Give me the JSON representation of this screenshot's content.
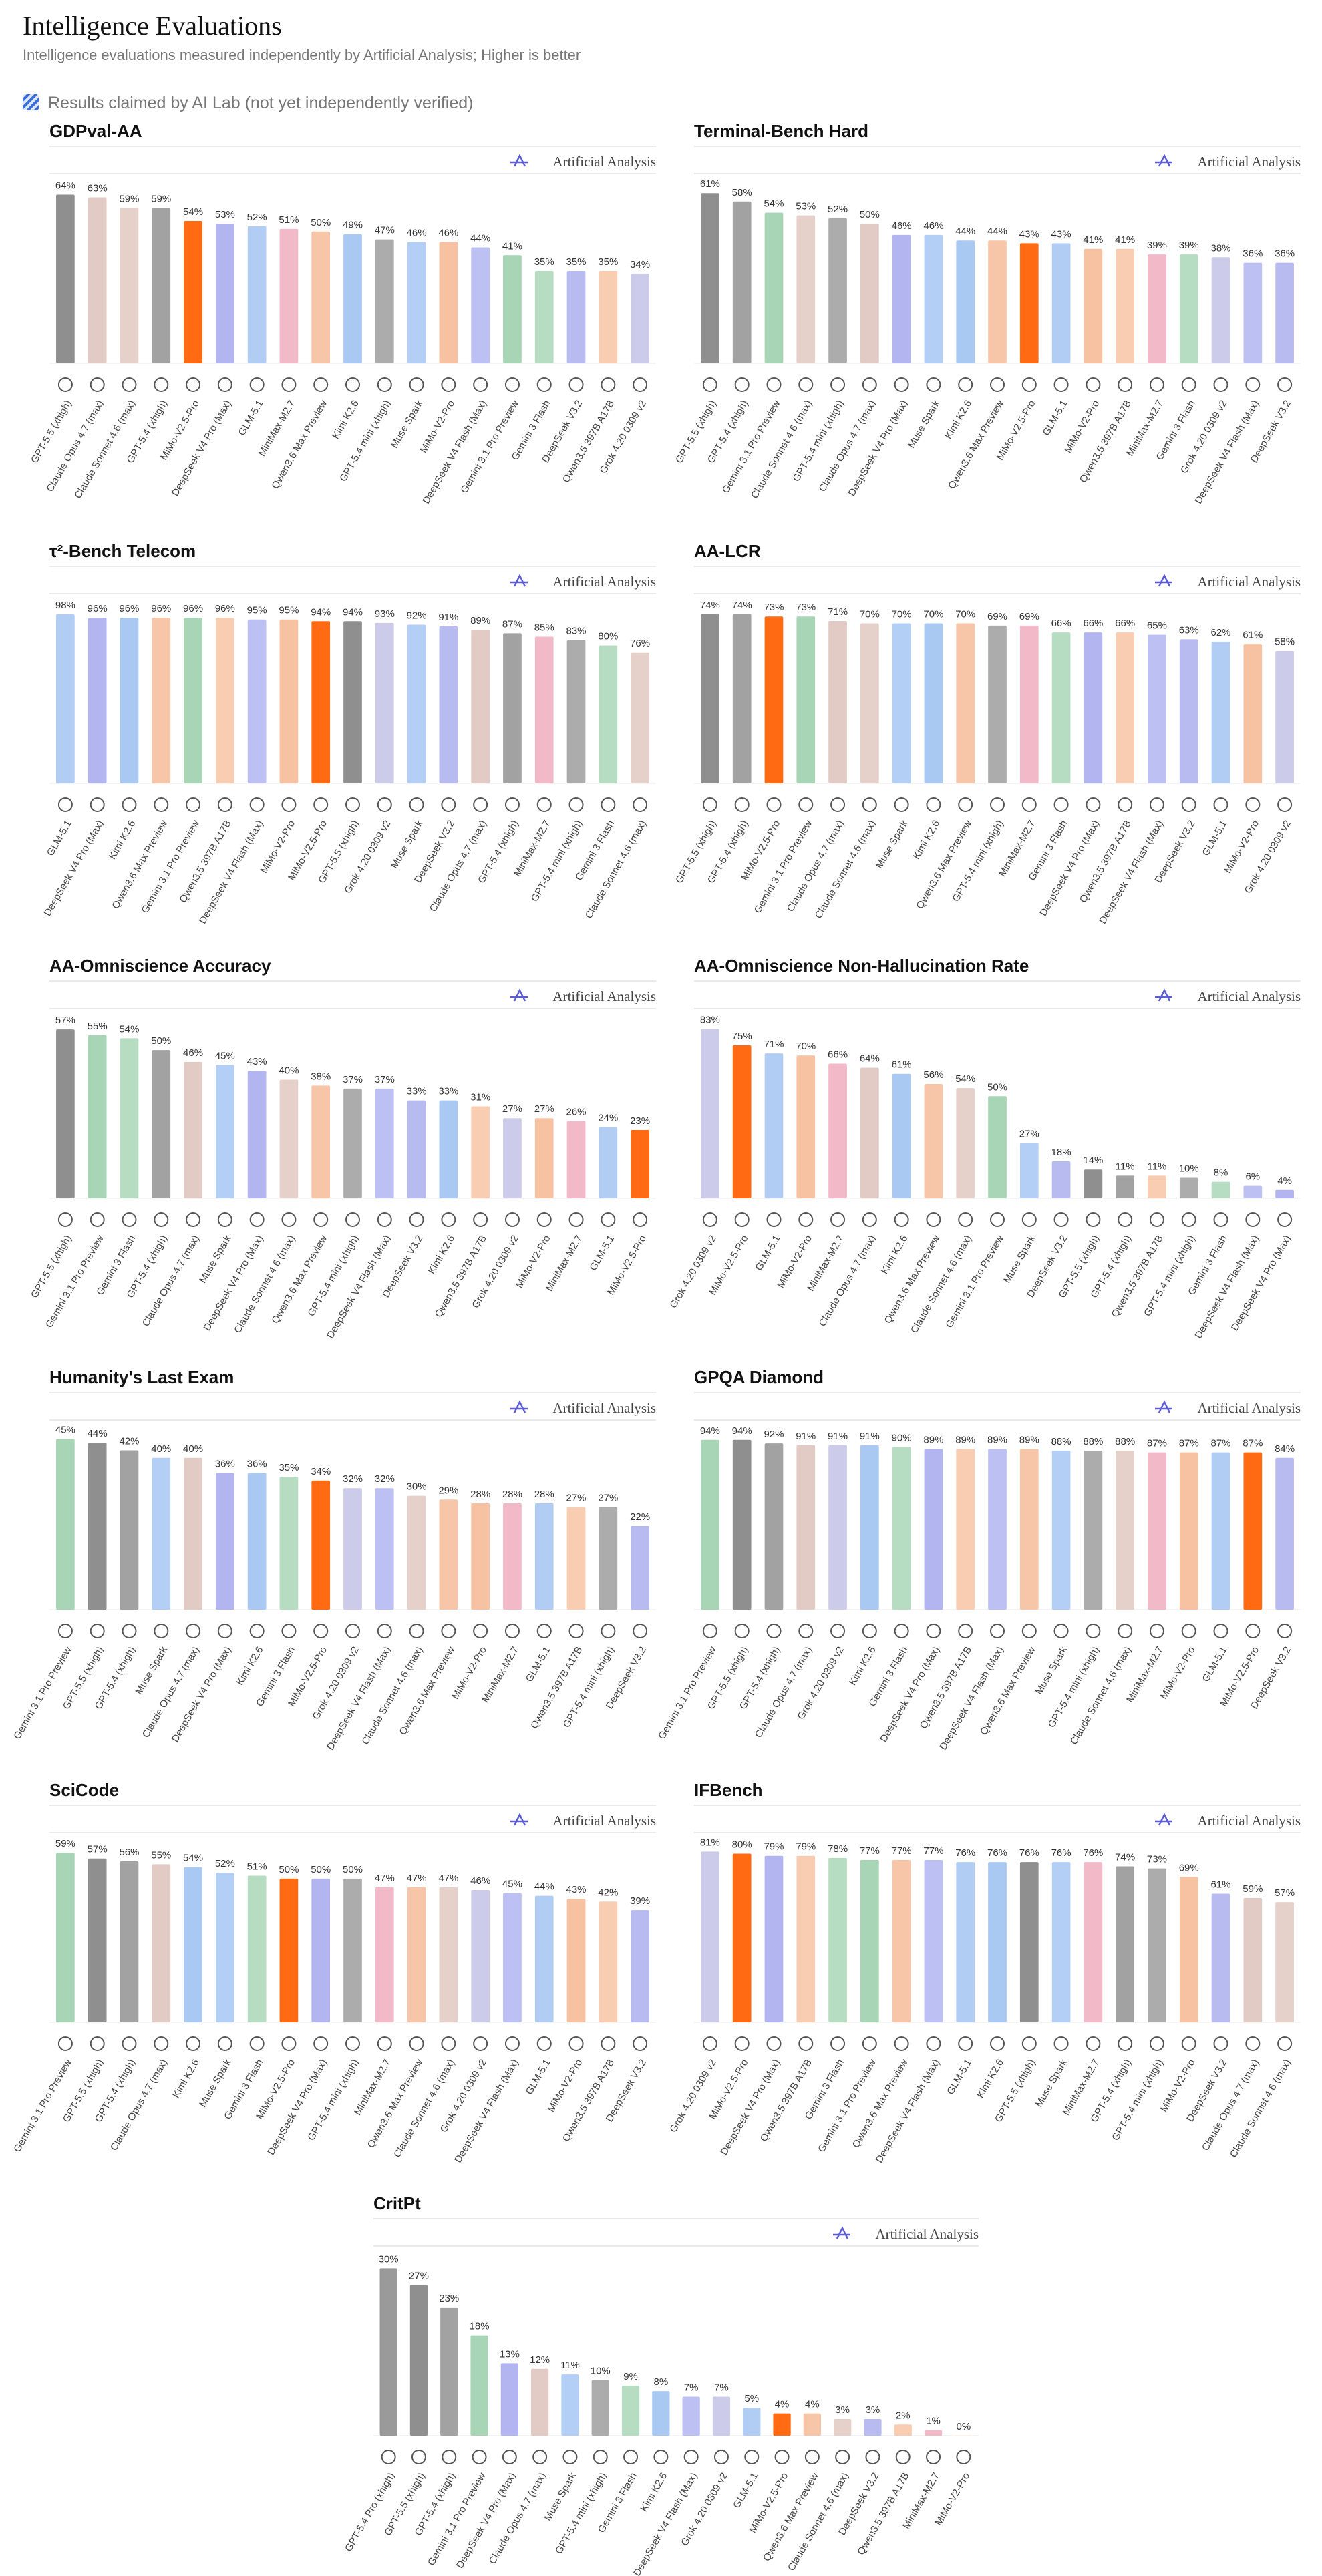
{
  "header": {
    "title": "Intelligence Evaluations",
    "subtitle": "Intelligence evaluations measured independently by Artificial Analysis; Higher is better",
    "legend": "Results claimed by AI Lab (not yet independently verified)"
  },
  "watermark": "Artificial Analysis",
  "bar_colors": {
    "GPT-5.5 (xhigh)": "#8f8f8f",
    "GPT-5.4 (xhigh)": "#a2a2a2",
    "GPT-5.4 mini (xhigh)": "#acacac",
    "GPT-5.4 Pro (xhigh)": "#9a9a9a",
    "Claude Opus 4.7 (max)": "#e2cbc4",
    "Claude Sonnet 4.6 (max)": "#e6d1ca",
    "Gemini 3.1 Pro Preview": "#a8d5b5",
    "Gemini 3 Flash": "#b6dcc1",
    "DeepSeek V4 Pro (Max)": "#b2b5ef",
    "DeepSeek V4 Flash (Max)": "#bcc0f2",
    "DeepSeek V3.2": "#b8bbf0",
    "Kimi K2.6": "#a9c9f3",
    "Muse Spark": "#b4cff5",
    "GLM-5.1": "#b2cdf3",
    "Grok 4.20 0309 v2": "#ccccea",
    "Qwen3.6 Max Preview": "#f7c6a8",
    "Qwen3.5 397B A17B": "#f8cdb2",
    "MiniMax-M2.7": "#f2b9c8",
    "MiMo-V2-Pro": "#f6c2a2",
    "MiMo-V2.5-Pro": "#ff6a13"
  },
  "chart_data": [
    {
      "type": "bar",
      "title": "GDPval-AA",
      "ylim": [
        0,
        72
      ],
      "categories": [
        "GPT-5.5 (xhigh)",
        "Claude Opus 4.7 (max)",
        "Claude Sonnet 4.6 (max)",
        "GPT-5.4 (xhigh)",
        "MiMo-V2.5-Pro",
        "DeepSeek V4 Pro (Max)",
        "GLM-5.1",
        "MiniMax-M2.7",
        "Qwen3.6 Max Preview",
        "Kimi K2.6",
        "GPT-5.4 mini (xhigh)",
        "Muse Spark",
        "MiMo-V2-Pro",
        "DeepSeek V4 Flash (Max)",
        "Gemini 3.1 Pro Preview",
        "Gemini 3 Flash",
        "DeepSeek V3.2",
        "Qwen3.5 397B A17B",
        "Grok 4.20 0309 v2"
      ],
      "values": [
        64,
        63,
        59,
        59,
        54,
        53,
        52,
        51,
        50,
        49,
        47,
        46,
        46,
        44,
        41,
        35,
        35,
        35,
        34
      ],
      "value_labels": [
        "64%",
        "63%",
        "59%",
        "59%",
        "54%",
        "53%",
        "52%",
        "51%",
        "50%",
        "49%",
        "47%",
        "46%",
        "46%",
        "44%",
        "41%",
        "35%",
        "35%",
        "35%",
        "34%"
      ]
    },
    {
      "type": "bar",
      "title": "Terminal-Bench Hard",
      "ylim": [
        0,
        68
      ],
      "categories": [
        "GPT-5.5 (xhigh)",
        "GPT-5.4 (xhigh)",
        "Gemini 3.1 Pro Preview",
        "Claude Sonnet 4.6 (max)",
        "GPT-5.4 mini (xhigh)",
        "Claude Opus 4.7 (max)",
        "DeepSeek V4 Pro (Max)",
        "Muse Spark",
        "Kimi K2.6",
        "Qwen3.6 Max Preview",
        "MiMo-V2.5-Pro",
        "GLM-5.1",
        "MiMo-V2-Pro",
        "Qwen3.5 397B A17B",
        "MiniMax-M2.7",
        "Gemini 3 Flash",
        "Grok 4.20 0309 v2",
        "DeepSeek V4 Flash (Max)",
        "DeepSeek V3.2"
      ],
      "values": [
        61,
        58,
        54,
        53,
        52,
        50,
        46,
        46,
        44,
        44,
        43,
        43,
        41,
        41,
        39,
        39,
        38,
        36,
        36
      ],
      "value_labels": [
        "61%",
        "58%",
        "54%",
        "53%",
        "52%",
        "50%",
        "46%",
        "46%",
        "44%",
        "44%",
        "43%",
        "43%",
        "41%",
        "41%",
        "39%",
        "39%",
        "38%",
        "36%",
        "36%"
      ]
    },
    {
      "type": "bar",
      "title": "τ²-Bench Telecom",
      "ylim": [
        0,
        110
      ],
      "categories": [
        "GLM-5.1",
        "DeepSeek V4 Pro (Max)",
        "Kimi K2.6",
        "Qwen3.6 Max Preview",
        "Gemini 3.1 Pro Preview",
        "Qwen3.5 397B A17B",
        "DeepSeek V4 Flash (Max)",
        "MiMo-V2-Pro",
        "MiMo-V2.5-Pro",
        "GPT-5.5 (xhigh)",
        "Grok 4.20 0309 v2",
        "Muse Spark",
        "DeepSeek V3.2",
        "Claude Opus 4.7 (max)",
        "GPT-5.4 (xhigh)",
        "MiniMax-M2.7",
        "GPT-5.4 mini (xhigh)",
        "Gemini 3 Flash",
        "Claude Sonnet 4.6 (max)"
      ],
      "values": [
        98,
        96,
        96,
        96,
        96,
        96,
        95,
        95,
        94,
        94,
        93,
        92,
        91,
        89,
        87,
        85,
        83,
        80,
        76
      ],
      "value_labels": [
        "98%",
        "96%",
        "96%",
        "96%",
        "96%",
        "96%",
        "95%",
        "95%",
        "94%",
        "94%",
        "93%",
        "92%",
        "91%",
        "89%",
        "87%",
        "85%",
        "83%",
        "80%",
        "76%"
      ]
    },
    {
      "type": "bar",
      "title": "AA-LCR",
      "ylim": [
        0,
        83
      ],
      "categories": [
        "GPT-5.5 (xhigh)",
        "GPT-5.4 (xhigh)",
        "MiMo-V2.5-Pro",
        "Gemini 3.1 Pro Preview",
        "Claude Opus 4.7 (max)",
        "Claude Sonnet 4.6 (max)",
        "Muse Spark",
        "Kimi K2.6",
        "Qwen3.6 Max Preview",
        "GPT-5.4 mini (xhigh)",
        "MiniMax-M2.7",
        "Gemini 3 Flash",
        "DeepSeek V4 Pro (Max)",
        "Qwen3.5 397B A17B",
        "DeepSeek V4 Flash (Max)",
        "DeepSeek V3.2",
        "GLM-5.1",
        "MiMo-V2-Pro",
        "Grok 4.20 0309 v2"
      ],
      "values": [
        74,
        74,
        73,
        73,
        71,
        70,
        70,
        70,
        70,
        69,
        69,
        66,
        66,
        66,
        65,
        63,
        62,
        61,
        58
      ],
      "value_labels": [
        "74%",
        "74%",
        "73%",
        "73%",
        "71%",
        "70%",
        "70%",
        "70%",
        "70%",
        "69%",
        "69%",
        "66%",
        "66%",
        "66%",
        "65%",
        "63%",
        "62%",
        "61%",
        "58%"
      ]
    },
    {
      "type": "bar",
      "title": "AA-Omniscience Accuracy",
      "ylim": [
        0,
        64
      ],
      "categories": [
        "GPT-5.5 (xhigh)",
        "Gemini 3.1 Pro Preview",
        "Gemini 3 Flash",
        "GPT-5.4 (xhigh)",
        "Claude Opus 4.7 (max)",
        "Muse Spark",
        "DeepSeek V4 Pro (Max)",
        "Claude Sonnet 4.6 (max)",
        "Qwen3.6 Max Preview",
        "GPT-5.4 mini (xhigh)",
        "DeepSeek V4 Flash (Max)",
        "DeepSeek V3.2",
        "Kimi K2.6",
        "Qwen3.5 397B A17B",
        "Grok 4.20 0309 v2",
        "MiMo-V2-Pro",
        "MiniMax-M2.7",
        "GLM-5.1",
        "MiMo-V2.5-Pro"
      ],
      "values": [
        57,
        55,
        54,
        50,
        46,
        45,
        43,
        40,
        38,
        37,
        37,
        33,
        33,
        31,
        27,
        27,
        26,
        24,
        23
      ],
      "value_labels": [
        "57%",
        "55%",
        "54%",
        "50%",
        "46%",
        "45%",
        "43%",
        "40%",
        "38%",
        "37%",
        "37%",
        "33%",
        "33%",
        "31%",
        "27%",
        "27%",
        "26%",
        "24%",
        "23%"
      ]
    },
    {
      "type": "bar",
      "title": "AA-Omniscience Non-Hallucination Rate",
      "ylim": [
        0,
        93
      ],
      "categories": [
        "Grok 4.20 0309 v2",
        "MiMo-V2.5-Pro",
        "GLM-5.1",
        "MiMo-V2-Pro",
        "MiniMax-M2.7",
        "Claude Opus 4.7 (max)",
        "Kimi K2.6",
        "Qwen3.6 Max Preview",
        "Claude Sonnet 4.6 (max)",
        "Gemini 3.1 Pro Preview",
        "Muse Spark",
        "DeepSeek V3.2",
        "GPT-5.5 (xhigh)",
        "GPT-5.4 (xhigh)",
        "Qwen3.5 397B A17B",
        "GPT-5.4 mini (xhigh)",
        "Gemini 3 Flash",
        "DeepSeek V4 Flash (Max)",
        "DeepSeek V4 Pro (Max)"
      ],
      "values": [
        83,
        75,
        71,
        70,
        66,
        64,
        61,
        56,
        54,
        50,
        27,
        18,
        14,
        11,
        11,
        10,
        8,
        6,
        4
      ],
      "value_labels": [
        "83%",
        "75%",
        "71%",
        "70%",
        "66%",
        "64%",
        "61%",
        "56%",
        "54%",
        "50%",
        "27%",
        "18%",
        "14%",
        "11%",
        "11%",
        "10%",
        "8%",
        "6%",
        "4%"
      ]
    },
    {
      "type": "bar",
      "title": "Humanity's Last Exam",
      "ylim": [
        0,
        50
      ],
      "categories": [
        "Gemini 3.1 Pro Preview",
        "GPT-5.5 (xhigh)",
        "GPT-5.4 (xhigh)",
        "Muse Spark",
        "Claude Opus 4.7 (max)",
        "DeepSeek V4 Pro (Max)",
        "Kimi K2.6",
        "Gemini 3 Flash",
        "MiMo-V2.5-Pro",
        "Grok 4.20 0309 v2",
        "DeepSeek V4 Flash (Max)",
        "Claude Sonnet 4.6 (max)",
        "Qwen3.6 Max Preview",
        "MiMo-V2-Pro",
        "MiniMax-M2.7",
        "GLM-5.1",
        "Qwen3.5 397B A17B",
        "GPT-5.4 mini (xhigh)",
        "DeepSeek V3.2"
      ],
      "values": [
        45,
        44,
        42,
        40,
        40,
        36,
        36,
        35,
        34,
        32,
        32,
        30,
        29,
        28,
        28,
        28,
        27,
        27,
        22
      ],
      "value_labels": [
        "45%",
        "44%",
        "42%",
        "40%",
        "40%",
        "36%",
        "36%",
        "35%",
        "34%",
        "32%",
        "32%",
        "30%",
        "29%",
        "28%",
        "28%",
        "28%",
        "27%",
        "27%",
        "22%"
      ]
    },
    {
      "type": "bar",
      "title": "GPQA Diamond",
      "ylim": [
        0,
        105
      ],
      "categories": [
        "Gemini 3.1 Pro Preview",
        "GPT-5.5 (xhigh)",
        "GPT-5.4 (xhigh)",
        "Claude Opus 4.7 (max)",
        "Grok 4.20 0309 v2",
        "Kimi K2.6",
        "Gemini 3 Flash",
        "DeepSeek V4 Pro (Max)",
        "Qwen3.5 397B A17B",
        "DeepSeek V4 Flash (Max)",
        "Qwen3.6 Max Preview",
        "Muse Spark",
        "GPT-5.4 mini (xhigh)",
        "Claude Sonnet 4.6 (max)",
        "MiniMax-M2.7",
        "MiMo-V2-Pro",
        "GLM-5.1",
        "MiMo-V2.5-Pro",
        "DeepSeek V3.2"
      ],
      "values": [
        94,
        94,
        92,
        91,
        91,
        91,
        90,
        89,
        89,
        89,
        89,
        88,
        88,
        88,
        87,
        87,
        87,
        87,
        84
      ],
      "value_labels": [
        "94%",
        "94%",
        "92%",
        "91%",
        "91%",
        "91%",
        "90%",
        "89%",
        "89%",
        "89%",
        "89%",
        "88%",
        "88%",
        "88%",
        "87%",
        "87%",
        "87%",
        "87%",
        "84%"
      ]
    },
    {
      "type": "bar",
      "title": "SciCode",
      "ylim": [
        0,
        66
      ],
      "categories": [
        "Gemini 3.1 Pro Preview",
        "GPT-5.5 (xhigh)",
        "GPT-5.4 (xhigh)",
        "Claude Opus 4.7 (max)",
        "Kimi K2.6",
        "Muse Spark",
        "Gemini 3 Flash",
        "MiMo-V2.5-Pro",
        "DeepSeek V4 Pro (Max)",
        "GPT-5.4 mini (xhigh)",
        "MiniMax-M2.7",
        "Qwen3.6 Max Preview",
        "Claude Sonnet 4.6 (max)",
        "Grok 4.20 0309 v2",
        "DeepSeek V4 Flash (Max)",
        "GLM-5.1",
        "MiMo-V2-Pro",
        "Qwen3.5 397B A17B",
        "DeepSeek V3.2"
      ],
      "values": [
        59,
        57,
        56,
        55,
        54,
        52,
        51,
        50,
        50,
        50,
        47,
        47,
        47,
        46,
        45,
        44,
        43,
        42,
        39
      ],
      "value_labels": [
        "59%",
        "57%",
        "56%",
        "55%",
        "54%",
        "52%",
        "51%",
        "50%",
        "50%",
        "50%",
        "47%",
        "47%",
        "47%",
        "46%",
        "45%",
        "44%",
        "43%",
        "42%",
        "39%"
      ]
    },
    {
      "type": "bar",
      "title": "IFBench",
      "ylim": [
        0,
        90
      ],
      "categories": [
        "Grok 4.20 0309 v2",
        "MiMo-V2.5-Pro",
        "DeepSeek V4 Pro (Max)",
        "Qwen3.5 397B A17B",
        "Gemini 3 Flash",
        "Gemini 3.1 Pro Preview",
        "Qwen3.6 Max Preview",
        "DeepSeek V4 Flash (Max)",
        "GLM-5.1",
        "Kimi K2.6",
        "GPT-5.5 (xhigh)",
        "Muse Spark",
        "MiniMax-M2.7",
        "GPT-5.4 (xhigh)",
        "GPT-5.4 mini (xhigh)",
        "MiMo-V2-Pro",
        "DeepSeek V3.2",
        "Claude Opus 4.7 (max)",
        "Claude Sonnet 4.6 (max)"
      ],
      "values": [
        81,
        80,
        79,
        79,
        78,
        77,
        77,
        77,
        76,
        76,
        76,
        76,
        76,
        74,
        73,
        69,
        61,
        59,
        57
      ],
      "value_labels": [
        "81%",
        "80%",
        "79%",
        "79%",
        "78%",
        "77%",
        "77%",
        "77%",
        "76%",
        "76%",
        "76%",
        "76%",
        "76%",
        "74%",
        "73%",
        "69%",
        "61%",
        "59%",
        "57%"
      ]
    },
    {
      "type": "bar",
      "title": "CritPt",
      "ylim": [
        0,
        34
      ],
      "categories": [
        "GPT-5.4 Pro (xhigh)",
        "GPT-5.5 (xhigh)",
        "GPT-5.4 (xhigh)",
        "Gemini 3.1 Pro Preview",
        "DeepSeek V4 Pro (Max)",
        "Claude Opus 4.7 (max)",
        "Muse Spark",
        "GPT-5.4 mini (xhigh)",
        "Gemini 3 Flash",
        "Kimi K2.6",
        "DeepSeek V4 Flash (Max)",
        "Grok 4.20 0309 v2",
        "GLM-5.1",
        "MiMo-V2.5-Pro",
        "Qwen3.6 Max Preview",
        "Claude Sonnet 4.6 (max)",
        "DeepSeek V3.2",
        "Qwen3.5 397B A17B",
        "MiniMax-M2.7",
        "MiMo-V2-Pro"
      ],
      "values": [
        30,
        27,
        23,
        18,
        13,
        12,
        11,
        10,
        9,
        8,
        7,
        7,
        5,
        4,
        4,
        3,
        3,
        2,
        1,
        0
      ],
      "value_labels": [
        "30%",
        "27%",
        "23%",
        "18%",
        "13%",
        "12%",
        "11%",
        "10%",
        "9%",
        "8%",
        "7%",
        "7%",
        "5%",
        "4%",
        "4%",
        "3%",
        "3%",
        "2%",
        "1%",
        "0%"
      ]
    }
  ]
}
